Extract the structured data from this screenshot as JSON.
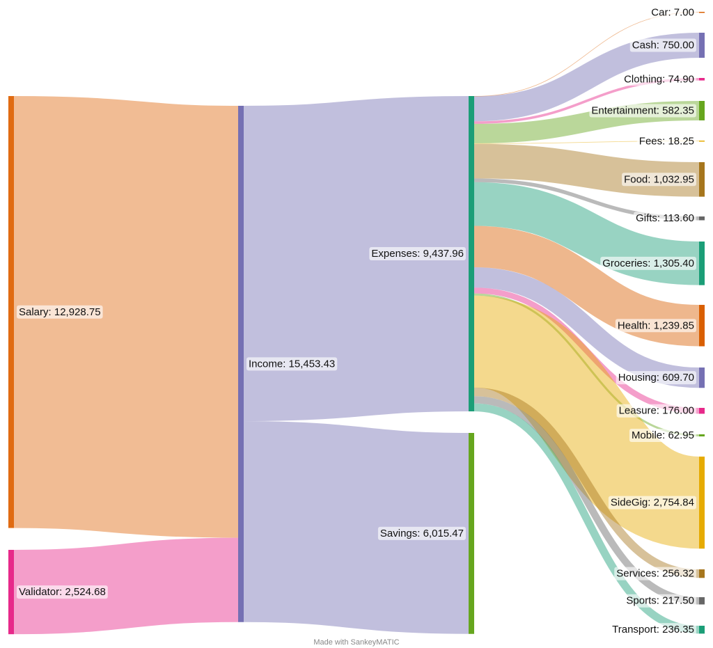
{
  "credit": "Made with SankeyMATIC",
  "chart_data": {
    "type": "sankey",
    "nodes": [
      {
        "id": "salary",
        "name": "Salary",
        "value_label": "12,928.75",
        "color": "#e06b12"
      },
      {
        "id": "validator",
        "name": "Validator",
        "value_label": "2,524.68",
        "color": "#e7298a"
      },
      {
        "id": "income",
        "name": "Income",
        "value_label": "15,453.43",
        "color": "#7570b3"
      },
      {
        "id": "expenses",
        "name": "Expenses",
        "value_label": "9,437.96",
        "color": "#1b9e77"
      },
      {
        "id": "savings",
        "name": "Savings",
        "value_label": "6,015.47",
        "color": "#66a61e"
      },
      {
        "id": "car",
        "name": "Car",
        "value_label": "7.00",
        "color": "#d95f02"
      },
      {
        "id": "cash",
        "name": "Cash",
        "value_label": "750.00",
        "color": "#7570b3"
      },
      {
        "id": "clothing",
        "name": "Clothing",
        "value_label": "74.90",
        "color": "#e7298a"
      },
      {
        "id": "entertainment",
        "name": "Entertainment",
        "value_label": "582.35",
        "color": "#66a61e"
      },
      {
        "id": "fees",
        "name": "Fees",
        "value_label": "18.25",
        "color": "#e6ab02"
      },
      {
        "id": "food",
        "name": "Food",
        "value_label": "1,032.95",
        "color": "#a6761d"
      },
      {
        "id": "gifts",
        "name": "Gifts",
        "value_label": "113.60",
        "color": "#666666"
      },
      {
        "id": "groceries",
        "name": "Groceries",
        "value_label": "1,305.40",
        "color": "#1b9e77"
      },
      {
        "id": "health",
        "name": "Health",
        "value_label": "1,239.85",
        "color": "#d95f02"
      },
      {
        "id": "housing",
        "name": "Housing",
        "value_label": "609.70",
        "color": "#7570b3"
      },
      {
        "id": "leasure",
        "name": "Leasure",
        "value_label": "176.00",
        "color": "#e7298a"
      },
      {
        "id": "mobile",
        "name": "Mobile",
        "value_label": "62.95",
        "color": "#66a61e"
      },
      {
        "id": "sidegig",
        "name": "SideGig",
        "value_label": "2,754.84",
        "color": "#e6ab02"
      },
      {
        "id": "services",
        "name": "Services",
        "value_label": "256.32",
        "color": "#a6761d"
      },
      {
        "id": "sports",
        "name": "Sports",
        "value_label": "217.50",
        "color": "#666666"
      },
      {
        "id": "transport",
        "name": "Transport",
        "value_label": "236.35",
        "color": "#1b9e77"
      }
    ],
    "links": [
      {
        "source": "salary",
        "target": "income",
        "value": 12928.75,
        "color": "#e06b12"
      },
      {
        "source": "validator",
        "target": "income",
        "value": 2524.68,
        "color": "#e7298a"
      },
      {
        "source": "income",
        "target": "expenses",
        "value": 9437.96,
        "color": "#7570b3"
      },
      {
        "source": "income",
        "target": "savings",
        "value": 6015.47,
        "color": "#7570b3"
      },
      {
        "source": "expenses",
        "target": "car",
        "value": 7.0,
        "color": "#d95f02"
      },
      {
        "source": "expenses",
        "target": "cash",
        "value": 750.0,
        "color": "#7570b3"
      },
      {
        "source": "expenses",
        "target": "clothing",
        "value": 74.9,
        "color": "#e7298a"
      },
      {
        "source": "expenses",
        "target": "entertainment",
        "value": 582.35,
        "color": "#66a61e"
      },
      {
        "source": "expenses",
        "target": "fees",
        "value": 18.25,
        "color": "#e6ab02"
      },
      {
        "source": "expenses",
        "target": "food",
        "value": 1032.95,
        "color": "#a6761d"
      },
      {
        "source": "expenses",
        "target": "gifts",
        "value": 113.6,
        "color": "#666666"
      },
      {
        "source": "expenses",
        "target": "groceries",
        "value": 1305.4,
        "color": "#1b9e77"
      },
      {
        "source": "expenses",
        "target": "health",
        "value": 1239.85,
        "color": "#d95f02"
      },
      {
        "source": "expenses",
        "target": "housing",
        "value": 609.7,
        "color": "#7570b3"
      },
      {
        "source": "expenses",
        "target": "leasure",
        "value": 176.0,
        "color": "#e7298a"
      },
      {
        "source": "expenses",
        "target": "mobile",
        "value": 62.95,
        "color": "#66a61e"
      },
      {
        "source": "expenses",
        "target": "sidegig",
        "value": 2754.84,
        "color": "#e6ab02"
      },
      {
        "source": "expenses",
        "target": "services",
        "value": 256.32,
        "color": "#a6761d"
      },
      {
        "source": "expenses",
        "target": "sports",
        "value": 217.5,
        "color": "#666666"
      },
      {
        "source": "expenses",
        "target": "transport",
        "value": 236.35,
        "color": "#1b9e77"
      }
    ]
  }
}
